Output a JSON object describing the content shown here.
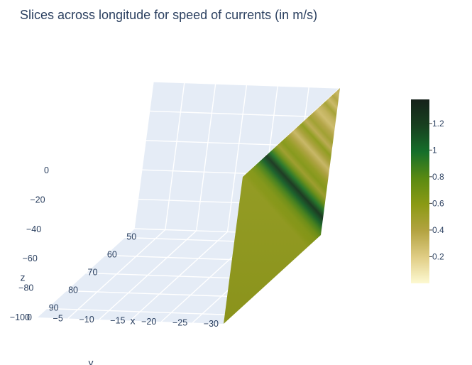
{
  "chart_data": {
    "type": "heatmap",
    "title": "Slices across longitude for speed of currents (in m/s)",
    "xlabel": "x",
    "ylabel": "y",
    "zlabel": "z",
    "x_ticks": [
      "50",
      "60",
      "70",
      "80",
      "90"
    ],
    "y_ticks": [
      "−30",
      "−25",
      "−20",
      "−15",
      "−10",
      "−5",
      "0"
    ],
    "z_ticks": [
      "0",
      "−20",
      "−40",
      "−60",
      "−80",
      "−100"
    ],
    "x_range": [
      45,
      95
    ],
    "y_range": [
      -30,
      0
    ],
    "z_range": [
      -100,
      0
    ],
    "slice": {
      "constant_axis": "y",
      "y": -30,
      "x_range": [
        45,
        95
      ],
      "z_range": [
        -100,
        0
      ],
      "speed_by_x": [
        {
          "x": 45,
          "v": 0.4
        },
        {
          "x": 47,
          "v": 0.32
        },
        {
          "x": 49,
          "v": 0.42
        },
        {
          "x": 51,
          "v": 0.3
        },
        {
          "x": 53,
          "v": 0.48
        },
        {
          "x": 55,
          "v": 0.34
        },
        {
          "x": 57,
          "v": 0.28
        },
        {
          "x": 59,
          "v": 0.4
        },
        {
          "x": 61,
          "v": 0.5
        },
        {
          "x": 63,
          "v": 0.36
        },
        {
          "x": 65,
          "v": 0.58
        },
        {
          "x": 67,
          "v": 0.45
        },
        {
          "x": 69,
          "v": 0.3
        },
        {
          "x": 71,
          "v": 0.42
        },
        {
          "x": 73,
          "v": 0.55
        },
        {
          "x": 75,
          "v": 0.62
        },
        {
          "x": 77,
          "v": 0.5
        },
        {
          "x": 79,
          "v": 0.72
        },
        {
          "x": 81,
          "v": 0.95
        },
        {
          "x": 83,
          "v": 1.25
        },
        {
          "x": 85,
          "v": 1.05
        },
        {
          "x": 87,
          "v": 0.85
        },
        {
          "x": 89,
          "v": 0.7
        },
        {
          "x": 91,
          "v": 0.62
        },
        {
          "x": 93,
          "v": 0.6
        },
        {
          "x": 95,
          "v": 0.55
        }
      ]
    },
    "colorscale": {
      "name": "speed",
      "stops": [
        "#fdf9d1",
        "#e0cd85",
        "#b3a341",
        "#8b9a14",
        "#5a8a12",
        "#156f2a",
        "#17401f",
        "#16221a"
      ],
      "range": [
        0,
        1.38
      ],
      "ticks": [
        "0.2",
        "0.4",
        "0.6",
        "0.8",
        "1",
        "1.2"
      ],
      "tick_values": [
        0.2,
        0.4,
        0.6,
        0.8,
        1.0,
        1.2
      ]
    },
    "grid": true,
    "colorbar_position": "right"
  }
}
